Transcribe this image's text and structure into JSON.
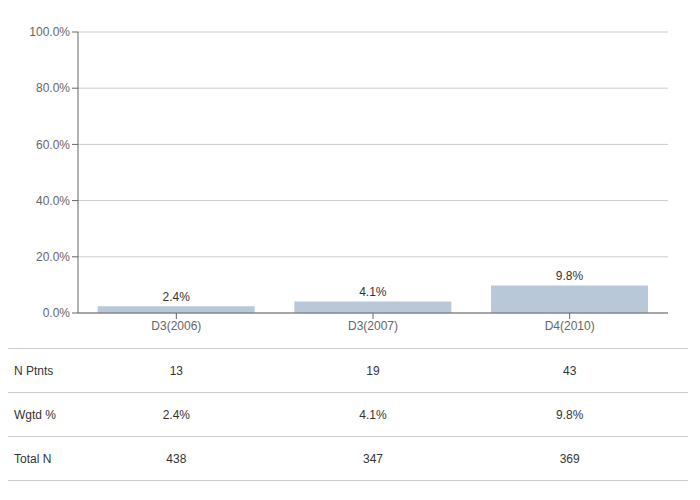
{
  "chart_data": {
    "type": "bar",
    "categories": [
      "D3(2006)",
      "D3(2007)",
      "D4(2010)"
    ],
    "values": [
      2.4,
      4.1,
      9.8
    ],
    "value_labels": [
      "2.4%",
      "4.1%",
      "9.8%"
    ],
    "data_labels": true,
    "color": "#b8c8d8",
    "ylim": [
      0,
      100
    ],
    "yticks": [
      {
        "value": 0,
        "label": "0.0%"
      },
      {
        "value": 20,
        "label": "20.0%"
      },
      {
        "value": 40,
        "label": "40.0%"
      },
      {
        "value": 60,
        "label": "60.0%"
      },
      {
        "value": 80,
        "label": "80.0%"
      },
      {
        "value": 100,
        "label": "100.0%"
      }
    ],
    "grid": true,
    "table": [
      {
        "label": "N Ptnts",
        "values": [
          13,
          19,
          43
        ]
      },
      {
        "label": "Wgtd %",
        "values": [
          2.4,
          4.1,
          9.8
        ],
        "value_labels": [
          "2.4%",
          "4.1%",
          "9.8%"
        ]
      },
      {
        "label": "Total N",
        "values": [
          438,
          347,
          369
        ]
      }
    ]
  }
}
